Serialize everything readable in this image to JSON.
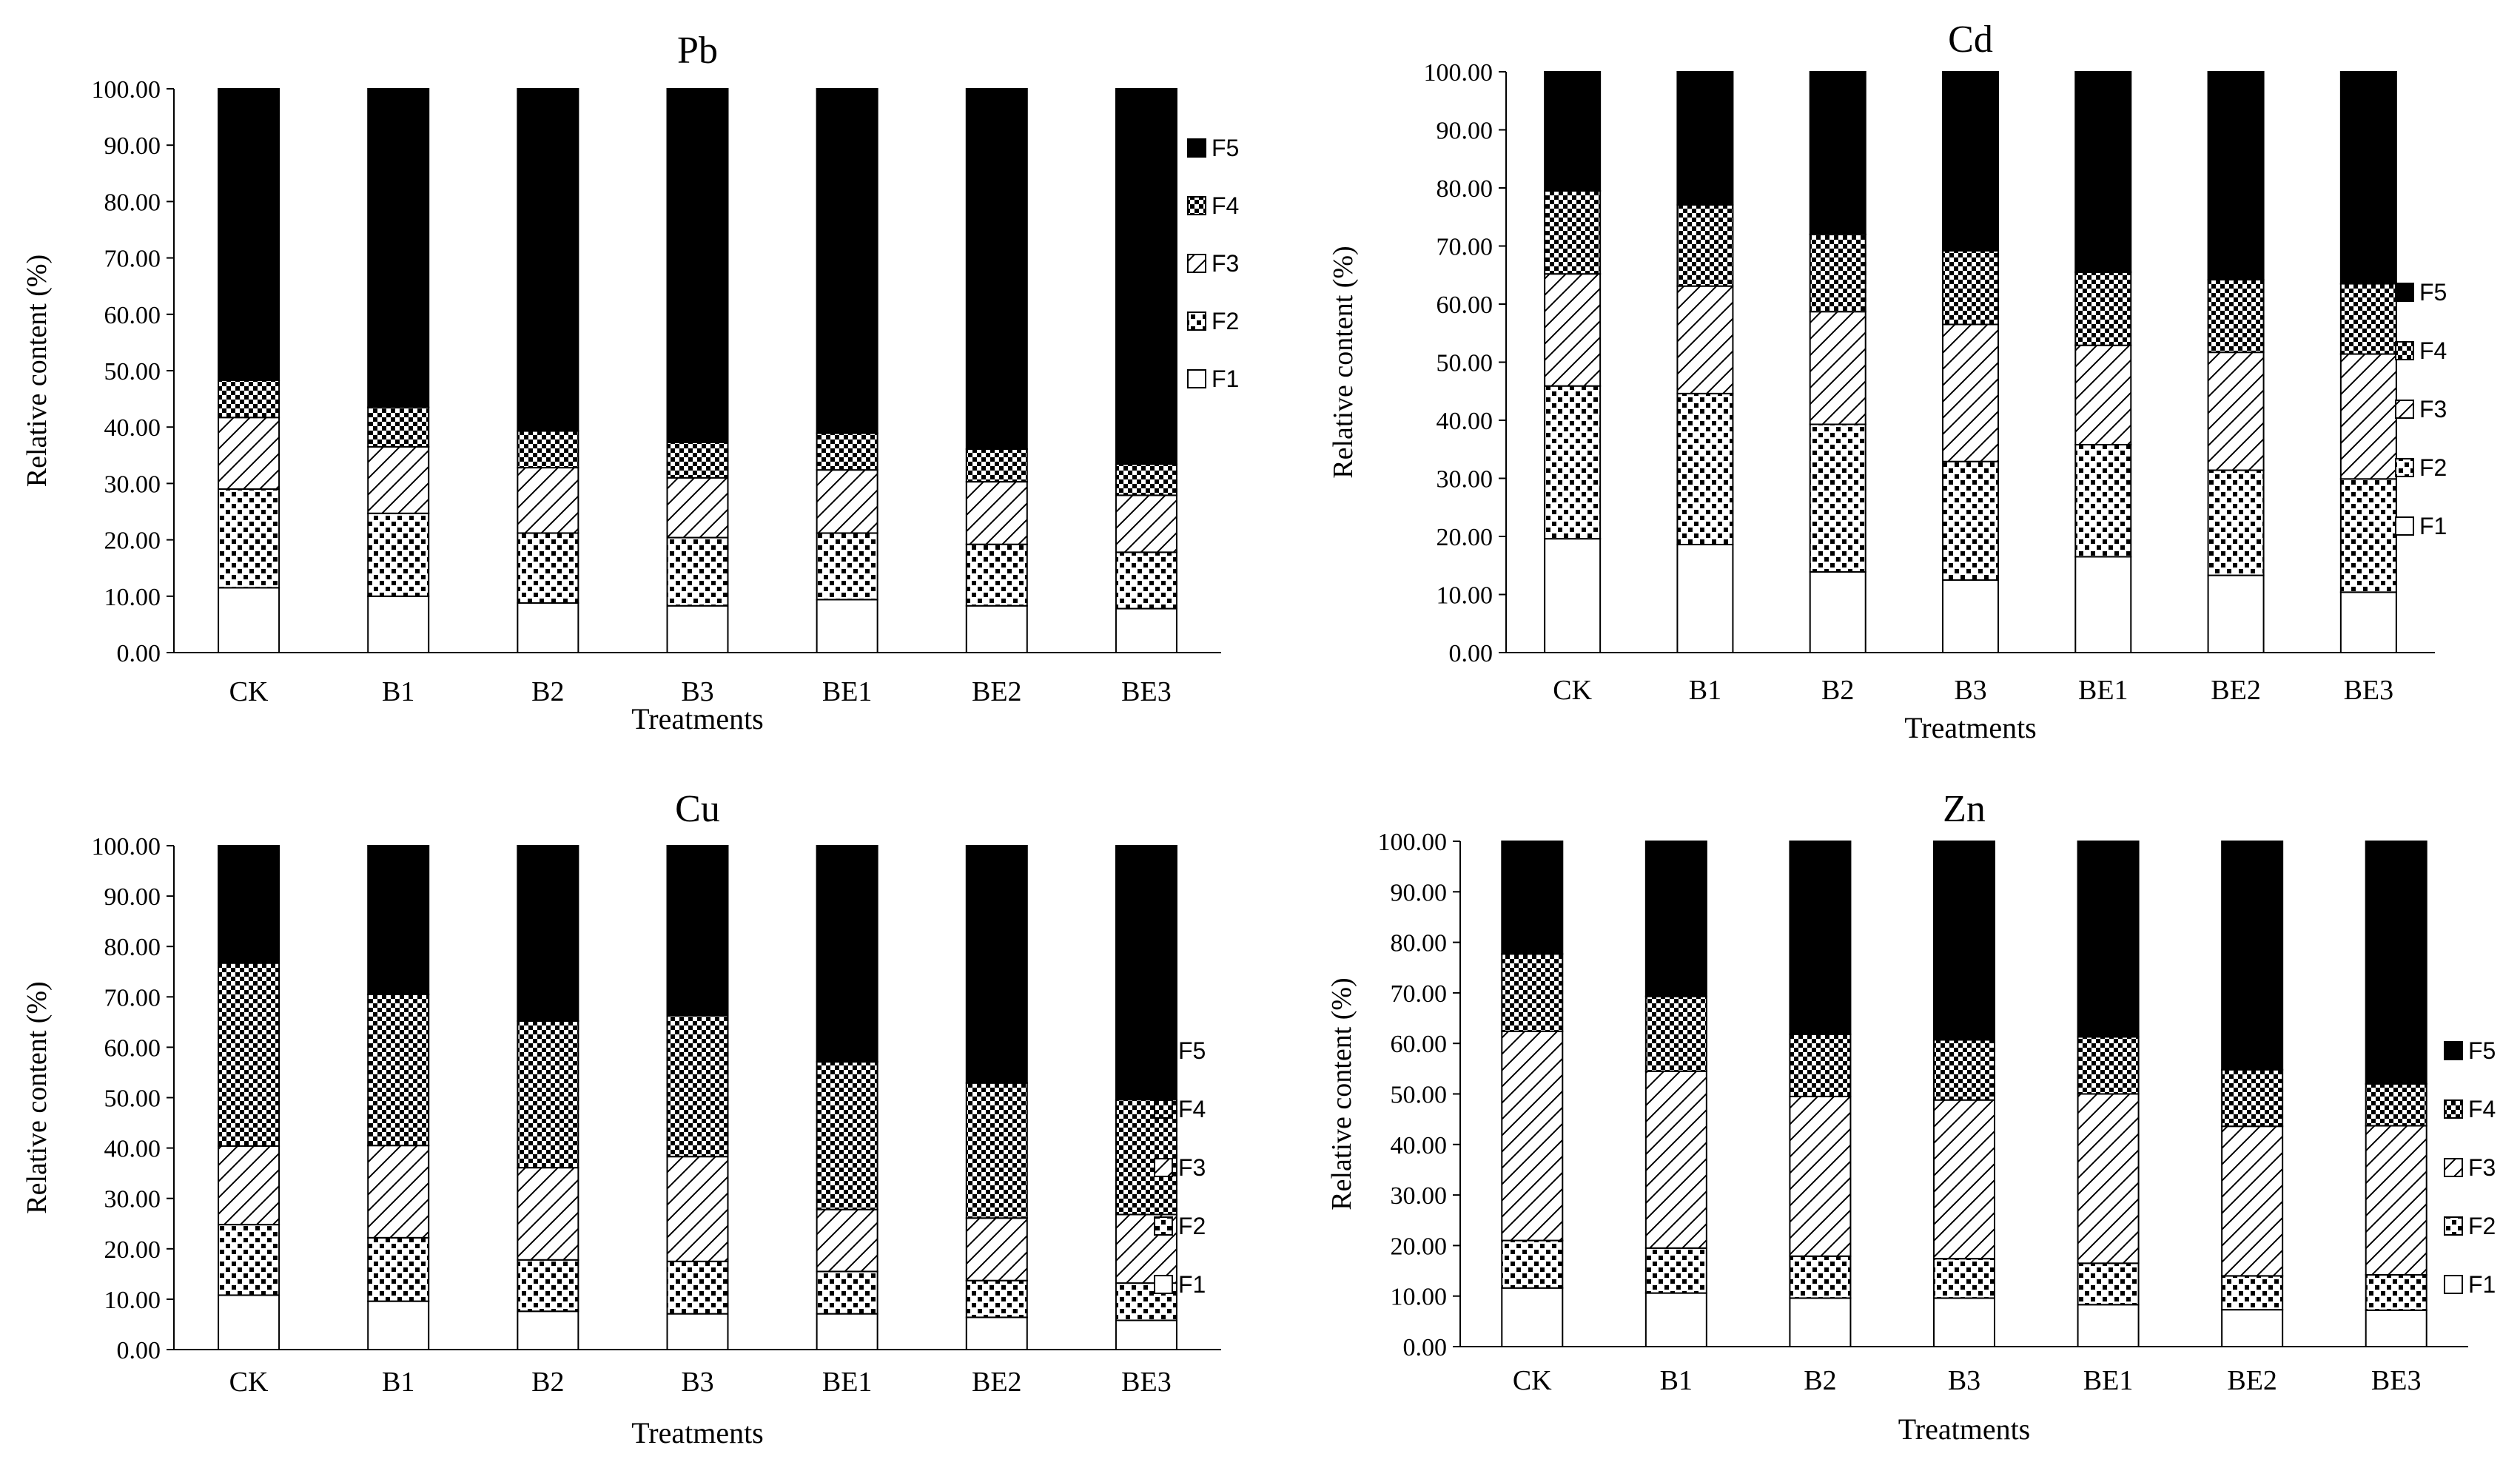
{
  "colors": {
    "background": "#ffffff",
    "F5": "#000000",
    "axis": "#000000",
    "bar_stroke": "#000000"
  },
  "chart_data": [
    {
      "type": "bar",
      "stacked": true,
      "title": "Pb",
      "xlabel": "Treatments",
      "ylabel": "Relative content (%)",
      "ylim": [
        0,
        100
      ],
      "yticks": [
        "0.00",
        "10.00",
        "20.00",
        "30.00",
        "40.00",
        "50.00",
        "60.00",
        "70.00",
        "80.00",
        "90.00",
        "100.00"
      ],
      "categories": [
        "CK",
        "B1",
        "B2",
        "B3",
        "BE1",
        "BE2",
        "BE3"
      ],
      "legend": [
        "F5",
        "F4",
        "F3",
        "F2",
        "F1"
      ],
      "legend_position": "right",
      "series": [
        {
          "name": "F1",
          "pattern": "blank",
          "values": [
            11.5,
            10.0,
            8.8,
            8.3,
            9.4,
            8.3,
            7.8
          ]
        },
        {
          "name": "F2",
          "pattern": "dots",
          "values": [
            17.5,
            14.7,
            12.4,
            12.1,
            11.8,
            10.9,
            10.0
          ]
        },
        {
          "name": "F3",
          "pattern": "diagonal",
          "values": [
            12.7,
            11.8,
            11.6,
            10.6,
            11.2,
            11.1,
            10.1
          ]
        },
        {
          "name": "F4",
          "pattern": "checker",
          "values": [
            6.6,
            7.0,
            6.5,
            6.3,
            6.5,
            5.8,
            5.5
          ]
        },
        {
          "name": "F5",
          "pattern": "solid",
          "values": [
            51.7,
            56.5,
            60.7,
            62.7,
            61.1,
            63.9,
            66.6
          ]
        }
      ]
    },
    {
      "type": "bar",
      "stacked": true,
      "title": "Cd",
      "xlabel": "Treatments",
      "ylabel": "Relative content (%)",
      "ylim": [
        0,
        100
      ],
      "yticks": [
        "0.00",
        "10.00",
        "20.00",
        "30.00",
        "40.00",
        "50.00",
        "60.00",
        "70.00",
        "80.00",
        "90.00",
        "100.00"
      ],
      "categories": [
        "CK",
        "B1",
        "B2",
        "B3",
        "BE1",
        "BE2",
        "BE3"
      ],
      "legend": [
        "F5",
        "F4",
        "F3",
        "F2",
        "F1"
      ],
      "legend_position": "right",
      "series": [
        {
          "name": "F1",
          "pattern": "blank",
          "values": [
            19.6,
            18.6,
            13.9,
            12.5,
            16.5,
            13.3,
            10.4
          ]
        },
        {
          "name": "F2",
          "pattern": "dots",
          "values": [
            26.3,
            26.0,
            25.4,
            20.4,
            19.3,
            18.1,
            19.5
          ]
        },
        {
          "name": "F3",
          "pattern": "diagonal",
          "values": [
            19.3,
            18.5,
            19.4,
            23.6,
            17.1,
            20.3,
            21.5
          ]
        },
        {
          "name": "F4",
          "pattern": "checker",
          "values": [
            14.3,
            14.0,
            13.3,
            12.7,
            12.6,
            12.5,
            12.1
          ]
        },
        {
          "name": "F5",
          "pattern": "solid",
          "values": [
            20.5,
            22.9,
            28.0,
            30.8,
            34.5,
            35.8,
            36.5
          ]
        }
      ]
    },
    {
      "type": "bar",
      "stacked": true,
      "title": "Cu",
      "xlabel": "Treatments",
      "ylabel": "Relative content (%)",
      "ylim": [
        0,
        100
      ],
      "yticks": [
        "0.00",
        "10.00",
        "20.00",
        "30.00",
        "40.00",
        "50.00",
        "60.00",
        "70.00",
        "80.00",
        "90.00",
        "100.00"
      ],
      "categories": [
        "CK",
        "B1",
        "B2",
        "B3",
        "BE1",
        "BE2",
        "BE3"
      ],
      "legend": [
        "F5",
        "F4",
        "F3",
        "F2",
        "F1"
      ],
      "legend_position": "right",
      "series": [
        {
          "name": "F1",
          "pattern": "blank",
          "values": [
            10.8,
            9.6,
            7.6,
            7.1,
            7.1,
            6.4,
            5.8
          ]
        },
        {
          "name": "F2",
          "pattern": "dots",
          "values": [
            14.0,
            12.6,
            10.2,
            10.4,
            8.4,
            7.3,
            7.4
          ]
        },
        {
          "name": "F3",
          "pattern": "diagonal",
          "values": [
            15.6,
            18.3,
            18.3,
            20.8,
            12.3,
            12.4,
            13.6
          ]
        },
        {
          "name": "F4",
          "pattern": "checker",
          "values": [
            36.3,
            30.0,
            29.1,
            28.0,
            29.3,
            26.8,
            22.8
          ]
        },
        {
          "name": "F5",
          "pattern": "solid",
          "values": [
            23.3,
            29.5,
            34.8,
            33.7,
            42.9,
            47.1,
            50.4
          ]
        }
      ]
    },
    {
      "type": "bar",
      "stacked": true,
      "title": "Zn",
      "xlabel": "Treatments",
      "ylabel": "Relative content (%)",
      "ylim": [
        0,
        100
      ],
      "yticks": [
        "0.00",
        "10.00",
        "20.00",
        "30.00",
        "40.00",
        "50.00",
        "60.00",
        "70.00",
        "80.00",
        "90.00",
        "100.00"
      ],
      "categories": [
        "CK",
        "B1",
        "B2",
        "B3",
        "BE1",
        "BE2",
        "BE3"
      ],
      "legend": [
        "F5",
        "F4",
        "F3",
        "F2",
        "F1"
      ],
      "legend_position": "right",
      "series": [
        {
          "name": "F1",
          "pattern": "blank",
          "values": [
            11.6,
            10.6,
            9.6,
            9.6,
            8.3,
            7.3,
            7.2
          ]
        },
        {
          "name": "F2",
          "pattern": "dots",
          "values": [
            9.4,
            8.9,
            8.3,
            7.8,
            8.2,
            6.7,
            7.0
          ]
        },
        {
          "name": "F3",
          "pattern": "diagonal",
          "values": [
            41.4,
            35.0,
            31.6,
            31.4,
            33.5,
            29.6,
            29.5
          ]
        },
        {
          "name": "F4",
          "pattern": "checker",
          "values": [
            15.3,
            14.8,
            12.3,
            11.9,
            11.3,
            11.2,
            8.3
          ]
        },
        {
          "name": "F5",
          "pattern": "solid",
          "values": [
            22.3,
            30.7,
            38.2,
            39.3,
            38.7,
            45.2,
            48.0
          ]
        }
      ]
    }
  ]
}
